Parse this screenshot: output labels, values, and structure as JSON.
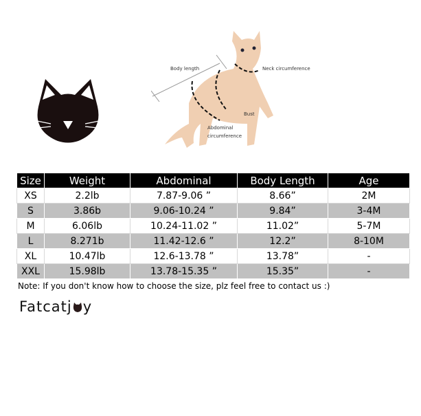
{
  "diagram": {
    "labels": {
      "body_length": "Body length",
      "neck": "Neck circumference",
      "bust": "Bust",
      "abdominal": "Abdominal",
      "circumference": "circumference"
    }
  },
  "table": {
    "headers": [
      "Size",
      "Weight",
      "Abdominal",
      "Body Length",
      "Age"
    ],
    "rows": [
      [
        "XS",
        "2.2lb",
        "7.87-9.06 ”",
        "8.66”",
        "2M"
      ],
      [
        "S",
        "3.86b",
        "9.06-10.24 ”",
        "9.84”",
        "3-4M"
      ],
      [
        "M",
        "6.06lb",
        "10.24-11.02 ”",
        "11.02”",
        "5-7M"
      ],
      [
        "L",
        "8.271b",
        "11.42-12.6 ”",
        "12.2”",
        "8-10M"
      ],
      [
        "XL",
        "10.47lb",
        "12.6-13.78 ”",
        "13.78”",
        "-"
      ],
      [
        "XXL",
        "15.98lb",
        "13.78-15.35 ”",
        "15.35”",
        "-"
      ]
    ]
  },
  "note": "Note: If you don't know how to choose the size, plz feel free to contact us :)",
  "brand": {
    "prefix": "Fatcatj",
    "suffix": "y",
    "logo_icon": "cat-head-icon"
  },
  "colors": {
    "header_bg": "#000000",
    "alt_row": "#c0c0c0"
  }
}
